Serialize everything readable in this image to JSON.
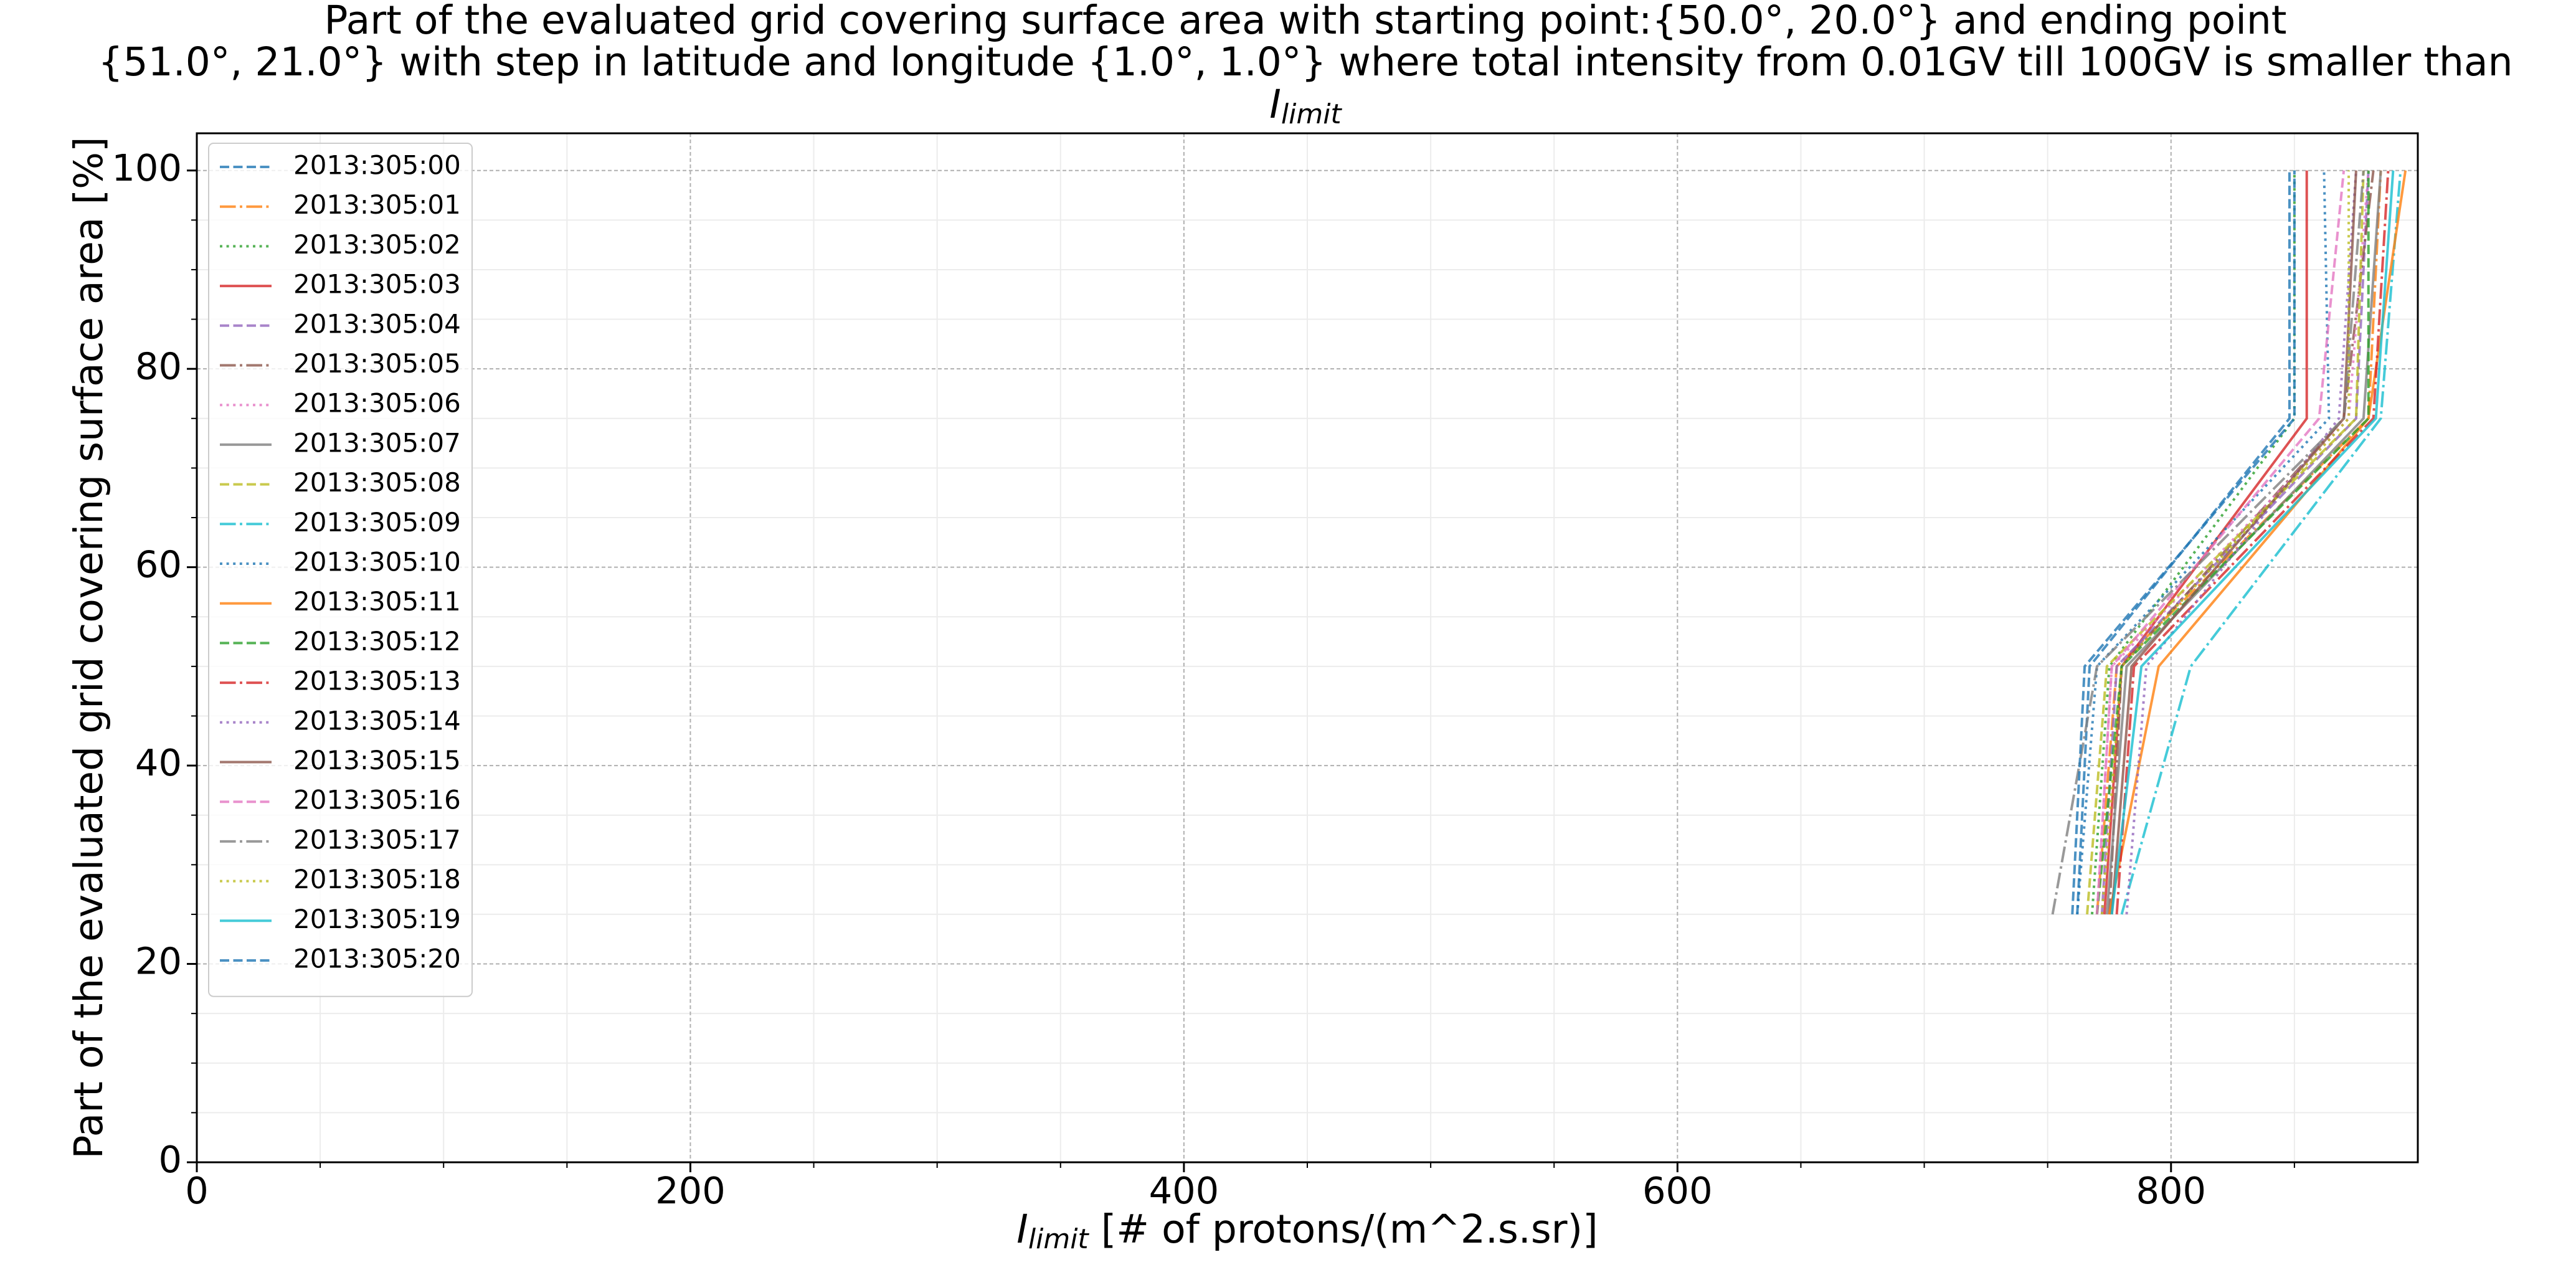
{
  "chart_data": {
    "type": "line",
    "title": [
      "Part of the evaluated grid covering surface area with starting point:{50.0°, 20.0°} and ending point",
      "{51.0°, 21.0°} with step in latitude and longitude {1.0°, 1.0°} where total intensity from 0.01GV till 100GV is smaller than"
    ],
    "title_symbol": {
      "base": "I",
      "sub": "limit"
    },
    "xlabel": {
      "base": "I",
      "sub": "limit",
      "text": " [# of protons/(m^2.s.sr)]"
    },
    "ylabel": "Part of the evaluated grid covering surface area  [%]",
    "xlim": [
      0,
      900
    ],
    "ylim": [
      0,
      103.75
    ],
    "xticks": [
      0,
      200,
      400,
      600,
      800
    ],
    "yticks": [
      0,
      20,
      40,
      60,
      80,
      100
    ],
    "xminorticks": [
      50,
      100,
      150,
      250,
      300,
      350,
      450,
      500,
      550,
      650,
      700,
      750,
      850
    ],
    "yminorticks": [
      5,
      10,
      15,
      25,
      30,
      35,
      45,
      50,
      55,
      65,
      70,
      75,
      85,
      90,
      95
    ],
    "grid": true,
    "legend": "upper left",
    "series": [
      {
        "name": "2013:305:00",
        "color": "#1f77b4",
        "linestyle": "dashed",
        "x": [
          762,
          767,
          848,
          848
        ],
        "values": [
          25,
          50,
          75,
          100
        ]
      },
      {
        "name": "2013:305:01",
        "color": "#ff7f0e",
        "linestyle": "dashdot",
        "x": [
          770,
          778,
          880,
          885
        ],
        "values": [
          25,
          50,
          75,
          100
        ]
      },
      {
        "name": "2013:305:02",
        "color": "#2ca02c",
        "linestyle": "dotted",
        "x": [
          768,
          775,
          850,
          850
        ],
        "values": [
          25,
          50,
          75,
          100
        ]
      },
      {
        "name": "2013:305:03",
        "color": "#d62728",
        "linestyle": "solid",
        "x": [
          773,
          780,
          855,
          855
        ],
        "values": [
          25,
          50,
          75,
          100
        ]
      },
      {
        "name": "2013:305:04",
        "color": "#9467bd",
        "linestyle": "dashed",
        "x": [
          772,
          778,
          875,
          880
        ],
        "values": [
          25,
          50,
          75,
          100
        ]
      },
      {
        "name": "2013:305:05",
        "color": "#8c564b",
        "linestyle": "dashdot",
        "x": [
          775,
          780,
          870,
          882
        ],
        "values": [
          25,
          50,
          75,
          100
        ]
      },
      {
        "name": "2013:305:06",
        "color": "#e377c2",
        "linestyle": "dotted",
        "x": [
          770,
          776,
          872,
          880
        ],
        "values": [
          25,
          50,
          75,
          100
        ]
      },
      {
        "name": "2013:305:07",
        "color": "#7f7f7f",
        "linestyle": "solid",
        "x": [
          774,
          782,
          878,
          885
        ],
        "values": [
          25,
          50,
          75,
          100
        ]
      },
      {
        "name": "2013:305:08",
        "color": "#bcbd22",
        "linestyle": "dashed",
        "x": [
          766,
          774,
          875,
          878
        ],
        "values": [
          25,
          50,
          75,
          100
        ]
      },
      {
        "name": "2013:305:09",
        "color": "#17becf",
        "linestyle": "dashdot",
        "x": [
          780,
          808,
          885,
          893
        ],
        "values": [
          25,
          50,
          75,
          100
        ]
      },
      {
        "name": "2013:305:10",
        "color": "#1f77b4",
        "linestyle": "dotted",
        "x": [
          762,
          770,
          864,
          862
        ],
        "values": [
          25,
          50,
          75,
          100
        ]
      },
      {
        "name": "2013:305:11",
        "color": "#ff7f0e",
        "linestyle": "solid",
        "x": [
          775,
          795,
          880,
          895
        ],
        "values": [
          25,
          50,
          75,
          100
        ]
      },
      {
        "name": "2013:305:12",
        "color": "#2ca02c",
        "linestyle": "dashed",
        "x": [
          770,
          780,
          880,
          880
        ],
        "values": [
          25,
          50,
          75,
          100
        ]
      },
      {
        "name": "2013:305:13",
        "color": "#d62728",
        "linestyle": "dashdot",
        "x": [
          778,
          785,
          882,
          888
        ],
        "values": [
          25,
          50,
          75,
          100
        ]
      },
      {
        "name": "2013:305:14",
        "color": "#9467bd",
        "linestyle": "dotted",
        "x": [
          782,
          790,
          868,
          875
        ],
        "values": [
          25,
          50,
          75,
          100
        ]
      },
      {
        "name": "2013:305:15",
        "color": "#8c564b",
        "linestyle": "solid",
        "x": [
          776,
          784,
          870,
          875
        ],
        "values": [
          25,
          50,
          75,
          100
        ]
      },
      {
        "name": "2013:305:16",
        "color": "#e377c2",
        "linestyle": "dashed",
        "x": [
          770,
          776,
          860,
          870
        ],
        "values": [
          25,
          50,
          75,
          100
        ]
      },
      {
        "name": "2013:305:17",
        "color": "#7f7f7f",
        "linestyle": "dashdot",
        "x": [
          752,
          770,
          870,
          878
        ],
        "values": [
          25,
          50,
          75,
          100
        ]
      },
      {
        "name": "2013:305:18",
        "color": "#bcbd22",
        "linestyle": "dotted",
        "x": [
          772,
          780,
          872,
          872
        ],
        "values": [
          25,
          50,
          75,
          100
        ]
      },
      {
        "name": "2013:305:19",
        "color": "#17becf",
        "linestyle": "solid",
        "x": [
          776,
          788,
          883,
          890
        ],
        "values": [
          25,
          50,
          75,
          100
        ]
      },
      {
        "name": "2013:305:20",
        "color": "#1f77b4",
        "linestyle": "dashed",
        "x": [
          760,
          765,
          850,
          850
        ],
        "values": [
          25,
          50,
          75,
          100
        ]
      }
    ]
  }
}
